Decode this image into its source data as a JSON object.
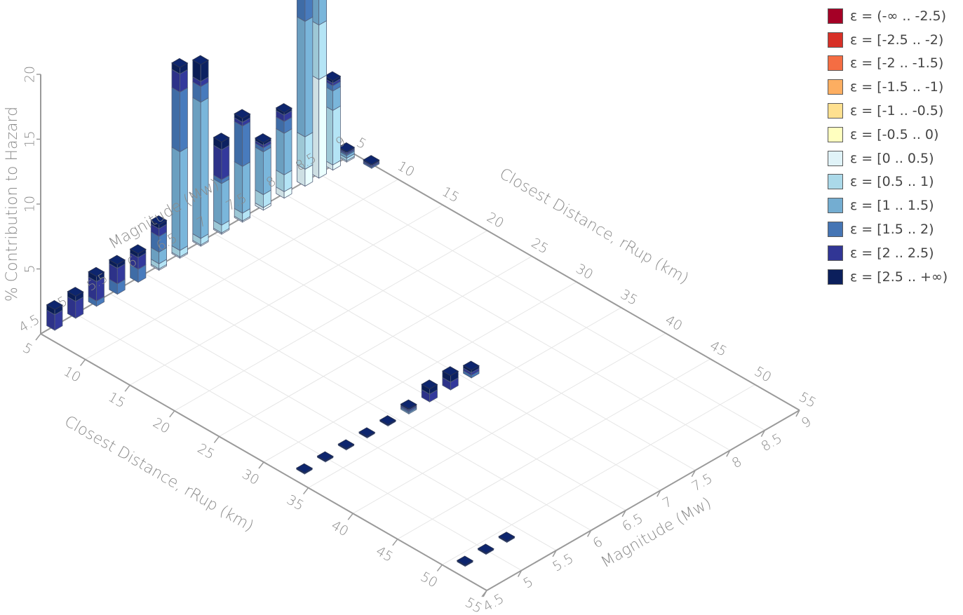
{
  "chart_data": {
    "type": "bar3d",
    "zlabel": "% Contribution to Hazard",
    "axis_back_left": "Magnitude (Mw)",
    "axis_back_right": "Closest Distance, rRup (km)",
    "axis_front_left": "Closest Distance, rRup (km)",
    "axis_front_right": "Magnitude (Mw)",
    "distance_ticks": [
      "5",
      "10",
      "15",
      "20",
      "25",
      "30",
      "35",
      "40",
      "45",
      "50",
      "55"
    ],
    "magnitude_ticks": [
      "4.5",
      "5",
      "5.5",
      "6",
      "6.5",
      "7",
      "7.5",
      "8",
      "8.5",
      "9"
    ],
    "z_ticks": [
      "5",
      "10",
      "15",
      "20"
    ],
    "z_base_tick": "4.5",
    "xlim": [
      5,
      55
    ],
    "ylim": [
      4.5,
      9
    ],
    "zlim": [
      0,
      20
    ],
    "grid": true,
    "legend_position": "top-right",
    "epsilon_bins": [
      {
        "label": "ε = (-∞ .. -2.5)",
        "color": "#a50026"
      },
      {
        "label": "ε = [-2.5 .. -2)",
        "color": "#d73027"
      },
      {
        "label": "ε = [-2 .. -1.5)",
        "color": "#f46d43"
      },
      {
        "label": "ε = [-1.5 .. -1)",
        "color": "#fdae61"
      },
      {
        "label": "ε = [-1 .. -0.5)",
        "color": "#fee090"
      },
      {
        "label": "ε = [-0.5 .. 0)",
        "color": "#ffffbf"
      },
      {
        "label": "ε = [0 .. 0.5)",
        "color": "#e0f3f8"
      },
      {
        "label": "ε = [0.5 .. 1)",
        "color": "#abd9e9"
      },
      {
        "label": "ε = [1 .. 1.5)",
        "color": "#74add1"
      },
      {
        "label": "ε = [1.5 .. 2)",
        "color": "#4575b4"
      },
      {
        "label": "ε = [2 .. 2.5)",
        "color": "#313695"
      },
      {
        "label": "ε = [2.5 .. +∞)",
        "color": "#0b1f5c"
      }
    ],
    "bars": [
      {
        "r": 5,
        "m": 4.7,
        "stack": [
          0,
          0,
          0,
          0,
          0,
          0,
          0,
          0,
          0,
          0,
          1.2,
          0.4
        ]
      },
      {
        "r": 5,
        "m": 5.0,
        "stack": [
          0,
          0,
          0,
          0,
          0,
          0,
          0,
          0,
          0,
          0,
          1.3,
          0.4
        ]
      },
      {
        "r": 5,
        "m": 5.3,
        "stack": [
          0,
          0,
          0,
          0,
          0,
          0,
          0,
          0,
          0,
          0.4,
          1.5,
          0.4
        ]
      },
      {
        "r": 5,
        "m": 5.6,
        "stack": [
          0,
          0,
          0,
          0,
          0,
          0,
          0,
          0,
          0,
          0.8,
          1.2,
          0.3
        ]
      },
      {
        "r": 5,
        "m": 5.9,
        "stack": [
          0,
          0,
          0,
          0,
          0,
          0,
          0,
          0,
          0,
          1.0,
          0.9,
          0.3
        ]
      },
      {
        "r": 5,
        "m": 6.2,
        "stack": [
          0,
          0,
          0,
          0,
          0,
          0,
          0.1,
          0.4,
          0.9,
          1.2,
          0.6,
          0.3
        ]
      },
      {
        "r": 5,
        "m": 6.5,
        "stack": [
          0,
          0,
          0,
          0,
          0,
          0,
          0.1,
          0.5,
          7.6,
          4.6,
          1.4,
          0.5
        ]
      },
      {
        "r": 5,
        "m": 6.8,
        "stack": [
          0,
          0,
          0,
          0,
          0,
          0,
          0.1,
          0.5,
          10.5,
          1.2,
          0.4,
          1.3
        ]
      },
      {
        "r": 5,
        "m": 7.1,
        "stack": [
          0,
          0,
          0,
          0,
          0,
          0,
          0.1,
          0.6,
          3.2,
          0.3,
          2.3,
          0.6
        ]
      },
      {
        "r": 5,
        "m": 7.4,
        "stack": [
          0,
          0,
          0,
          0,
          0,
          0,
          0.1,
          0.6,
          3.6,
          3.1,
          0.3,
          0.3
        ]
      },
      {
        "r": 5,
        "m": 7.7,
        "stack": [
          0,
          0,
          0,
          0,
          0,
          0,
          0.2,
          1.0,
          3.3,
          0.3,
          0.2,
          0.2
        ]
      },
      {
        "r": 5,
        "m": 8.0,
        "stack": [
          0,
          0,
          0,
          0,
          0,
          0,
          0.5,
          1.3,
          3.2,
          0.9,
          0.5,
          0.2
        ]
      },
      {
        "r": 5,
        "m": 8.3,
        "stack": [
          0,
          0,
          0,
          0,
          0,
          0,
          1.3,
          2.5,
          8.9,
          2.5,
          0.2,
          0.5
        ]
      },
      {
        "r": 5,
        "m": 8.5,
        "stack": [
          0,
          0,
          0,
          0,
          0,
          0,
          7.6,
          4.2,
          6.6,
          2.8,
          0.4,
          0.4
        ]
      },
      {
        "r": 5,
        "m": 8.7,
        "stack": [
          0,
          0,
          0,
          0,
          0,
          0,
          0.4,
          4.2,
          1.5,
          0.4,
          0.2,
          0.2
        ]
      },
      {
        "r": 5,
        "m": 8.9,
        "stack": [
          0,
          0,
          0,
          0,
          0,
          0,
          0.1,
          0.2,
          0.2,
          0.1,
          0.1,
          0.1
        ]
      },
      {
        "r": 7,
        "m": 9.0,
        "stack": [
          0,
          0,
          0,
          0,
          0,
          0,
          0,
          0,
          0,
          0.1,
          0.1,
          0.1
        ]
      },
      {
        "r": 33,
        "m": 4.7,
        "stack": [
          0,
          0,
          0,
          0,
          0,
          0,
          0,
          0,
          0,
          0,
          0,
          0.1
        ]
      },
      {
        "r": 33,
        "m": 5.0,
        "stack": [
          0,
          0,
          0,
          0,
          0,
          0,
          0,
          0,
          0,
          0,
          0,
          0.1
        ]
      },
      {
        "r": 33,
        "m": 5.3,
        "stack": [
          0,
          0,
          0,
          0,
          0,
          0,
          0,
          0,
          0,
          0,
          0,
          0.1
        ]
      },
      {
        "r": 33,
        "m": 5.6,
        "stack": [
          0,
          0,
          0,
          0,
          0,
          0,
          0,
          0,
          0,
          0,
          0,
          0.1
        ]
      },
      {
        "r": 33,
        "m": 5.9,
        "stack": [
          0,
          0,
          0,
          0,
          0,
          0,
          0,
          0,
          0,
          0,
          0,
          0.1
        ]
      },
      {
        "r": 33,
        "m": 6.2,
        "stack": [
          0,
          0,
          0,
          0,
          0,
          0,
          0,
          0,
          0.1,
          0.1,
          0.1,
          0.1
        ]
      },
      {
        "r": 33,
        "m": 6.5,
        "stack": [
          0,
          0,
          0,
          0,
          0,
          0,
          0,
          0,
          0,
          0,
          0.6,
          0.4
        ]
      },
      {
        "r": 33,
        "m": 6.8,
        "stack": [
          0,
          0,
          0,
          0,
          0,
          0,
          0,
          0,
          0,
          0,
          0.6,
          0.5
        ]
      },
      {
        "r": 33,
        "m": 7.1,
        "stack": [
          0,
          0,
          0,
          0,
          0,
          0,
          0,
          0,
          0,
          0.2,
          0.2,
          0.2
        ]
      },
      {
        "r": 51,
        "m": 4.7,
        "stack": [
          0,
          0,
          0,
          0,
          0,
          0,
          0,
          0,
          0,
          0,
          0,
          0.1
        ]
      },
      {
        "r": 51,
        "m": 5.0,
        "stack": [
          0,
          0,
          0,
          0,
          0,
          0,
          0,
          0,
          0,
          0,
          0,
          0.1
        ]
      },
      {
        "r": 51,
        "m": 5.3,
        "stack": [
          0,
          0,
          0,
          0,
          0,
          0,
          0,
          0,
          0,
          0,
          0,
          0.1
        ]
      }
    ]
  }
}
